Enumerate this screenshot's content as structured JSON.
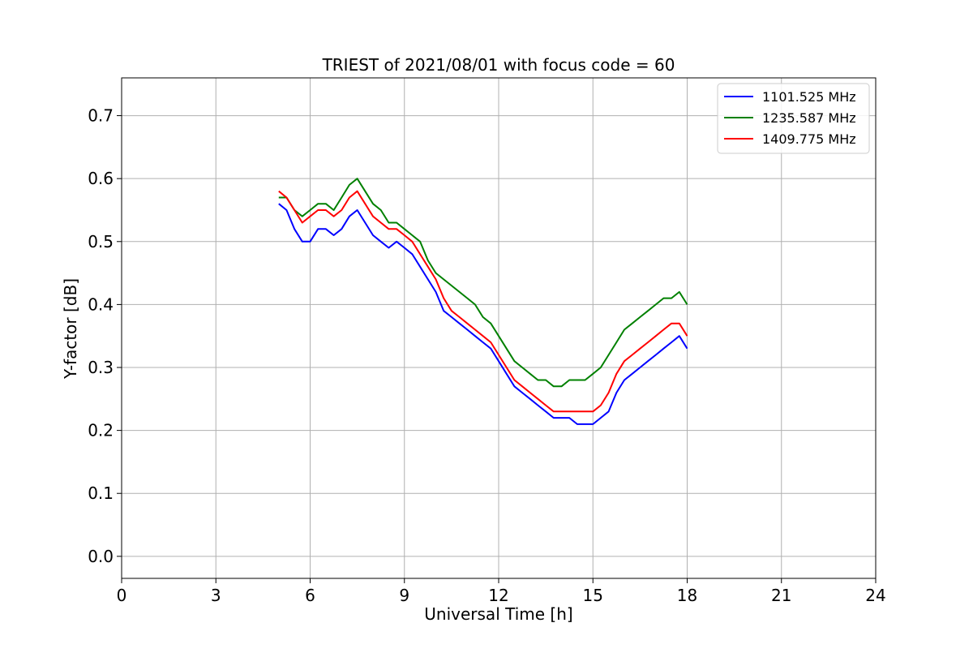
{
  "chart_data": {
    "type": "line",
    "title": "TRIEST of 2021/08/01 with focus code = 60",
    "xlabel": "Universal Time [h]",
    "ylabel": "Y-factor [dB]",
    "xlim": [
      0,
      24
    ],
    "ylim": [
      -0.035,
      0.76
    ],
    "xticks": [
      0,
      3,
      6,
      9,
      12,
      15,
      18,
      21,
      24
    ],
    "xtick_labels": [
      "0",
      "3",
      "6",
      "9",
      "12",
      "15",
      "18",
      "21",
      "24"
    ],
    "yticks": [
      0.0,
      0.1,
      0.2,
      0.3,
      0.4,
      0.5,
      0.6,
      0.7
    ],
    "ytick_labels": [
      "0.0",
      "0.1",
      "0.2",
      "0.3",
      "0.4",
      "0.5",
      "0.6",
      "0.7"
    ],
    "grid": true,
    "legend_position": "top-right",
    "series": [
      {
        "name": "1101.525 MHz",
        "color": "#0000ff",
        "x": [
          5.0,
          5.25,
          5.5,
          5.75,
          6.0,
          6.25,
          6.5,
          6.75,
          7.0,
          7.25,
          7.5,
          7.75,
          8.0,
          8.25,
          8.5,
          8.75,
          9.0,
          9.25,
          9.5,
          9.75,
          10.0,
          10.25,
          10.5,
          10.75,
          11.0,
          11.25,
          11.5,
          11.75,
          12.0,
          12.25,
          12.5,
          12.75,
          13.0,
          13.25,
          13.5,
          13.75,
          14.0,
          14.25,
          14.5,
          14.75,
          15.0,
          15.25,
          15.5,
          15.75,
          16.0,
          16.25,
          16.5,
          16.75,
          17.0,
          17.25,
          17.5,
          17.75,
          18.0
        ],
        "y": [
          0.56,
          0.55,
          0.52,
          0.5,
          0.5,
          0.52,
          0.52,
          0.51,
          0.52,
          0.54,
          0.55,
          0.53,
          0.51,
          0.5,
          0.49,
          0.5,
          0.49,
          0.48,
          0.46,
          0.44,
          0.42,
          0.39,
          0.38,
          0.37,
          0.36,
          0.35,
          0.34,
          0.33,
          0.31,
          0.29,
          0.27,
          0.26,
          0.25,
          0.24,
          0.23,
          0.22,
          0.22,
          0.22,
          0.21,
          0.21,
          0.21,
          0.22,
          0.23,
          0.26,
          0.28,
          0.29,
          0.3,
          0.31,
          0.32,
          0.33,
          0.34,
          0.35,
          0.33
        ]
      },
      {
        "name": "1235.587 MHz",
        "color": "#008000",
        "x": [
          5.0,
          5.25,
          5.5,
          5.75,
          6.0,
          6.25,
          6.5,
          6.75,
          7.0,
          7.25,
          7.5,
          7.75,
          8.0,
          8.25,
          8.5,
          8.75,
          9.0,
          9.25,
          9.5,
          9.75,
          10.0,
          10.25,
          10.5,
          10.75,
          11.0,
          11.25,
          11.5,
          11.75,
          12.0,
          12.25,
          12.5,
          12.75,
          13.0,
          13.25,
          13.5,
          13.75,
          14.0,
          14.25,
          14.5,
          14.75,
          15.0,
          15.25,
          15.5,
          15.75,
          16.0,
          16.25,
          16.5,
          16.75,
          17.0,
          17.25,
          17.5,
          17.75,
          18.0
        ],
        "y": [
          0.57,
          0.57,
          0.55,
          0.54,
          0.55,
          0.56,
          0.56,
          0.55,
          0.57,
          0.59,
          0.6,
          0.58,
          0.56,
          0.55,
          0.53,
          0.53,
          0.52,
          0.51,
          0.5,
          0.47,
          0.45,
          0.44,
          0.43,
          0.42,
          0.41,
          0.4,
          0.38,
          0.37,
          0.35,
          0.33,
          0.31,
          0.3,
          0.29,
          0.28,
          0.28,
          0.27,
          0.27,
          0.28,
          0.28,
          0.28,
          0.29,
          0.3,
          0.32,
          0.34,
          0.36,
          0.37,
          0.38,
          0.39,
          0.4,
          0.41,
          0.41,
          0.42,
          0.4
        ]
      },
      {
        "name": "1409.775 MHz",
        "color": "#ff0000",
        "x": [
          5.0,
          5.25,
          5.5,
          5.75,
          6.0,
          6.25,
          6.5,
          6.75,
          7.0,
          7.25,
          7.5,
          7.75,
          8.0,
          8.25,
          8.5,
          8.75,
          9.0,
          9.25,
          9.5,
          9.75,
          10.0,
          10.25,
          10.5,
          10.75,
          11.0,
          11.25,
          11.5,
          11.75,
          12.0,
          12.25,
          12.5,
          12.75,
          13.0,
          13.25,
          13.5,
          13.75,
          14.0,
          14.25,
          14.5,
          14.75,
          15.0,
          15.25,
          15.5,
          15.75,
          16.0,
          16.25,
          16.5,
          16.75,
          17.0,
          17.25,
          17.5,
          17.75,
          18.0
        ],
        "y": [
          0.58,
          0.57,
          0.55,
          0.53,
          0.54,
          0.55,
          0.55,
          0.54,
          0.55,
          0.57,
          0.58,
          0.56,
          0.54,
          0.53,
          0.52,
          0.52,
          0.51,
          0.5,
          0.48,
          0.46,
          0.44,
          0.41,
          0.39,
          0.38,
          0.37,
          0.36,
          0.35,
          0.34,
          0.32,
          0.3,
          0.28,
          0.27,
          0.26,
          0.25,
          0.24,
          0.23,
          0.23,
          0.23,
          0.23,
          0.23,
          0.23,
          0.24,
          0.26,
          0.29,
          0.31,
          0.32,
          0.33,
          0.34,
          0.35,
          0.36,
          0.37,
          0.37,
          0.35
        ]
      }
    ]
  }
}
